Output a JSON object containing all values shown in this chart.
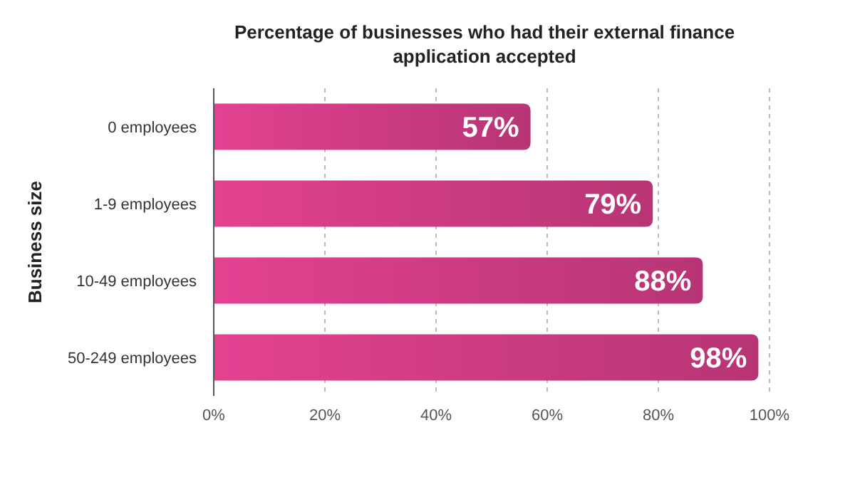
{
  "chart_data": {
    "type": "bar",
    "orientation": "horizontal",
    "title": "Percentage of businesses who had their external finance application accepted",
    "ylabel": "Business size",
    "categories": [
      "0 employees",
      "1-9 employees",
      "10-49 employees",
      "50-249 employees"
    ],
    "values": [
      57,
      79,
      88,
      98
    ],
    "value_labels": [
      "57%",
      "79%",
      "88%",
      "98%"
    ],
    "color": "#c83a80",
    "xlim": [
      0,
      100
    ],
    "xticks": [
      {
        "value": 0,
        "label": "0%"
      },
      {
        "value": 20,
        "label": "20%"
      },
      {
        "value": 40,
        "label": "40%"
      },
      {
        "value": 60,
        "label": "60%"
      },
      {
        "value": 80,
        "label": "80%"
      },
      {
        "value": 100,
        "label": "100%"
      }
    ],
    "grid": "x"
  }
}
